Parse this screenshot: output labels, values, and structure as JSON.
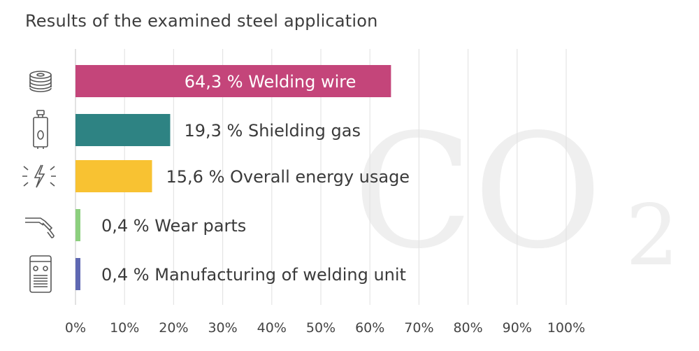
{
  "title": "Results of the examined steel application",
  "watermark": {
    "main": "CO",
    "sub": "2"
  },
  "chart_data": {
    "type": "bar",
    "orientation": "horizontal",
    "title": "Results of the examined steel application",
    "xlim": [
      0,
      100
    ],
    "x_ticks": [
      "0%",
      "10%",
      "20%",
      "30%",
      "40%",
      "50%",
      "60%",
      "70%",
      "80%",
      "90%",
      "100%"
    ],
    "grid": true,
    "categories": [
      "Welding wire",
      "Shielding gas",
      "Overall energy usage",
      "Wear parts",
      "Manufacturing of welding unit"
    ],
    "values": [
      64.3,
      19.3,
      15.6,
      0.4,
      0.4
    ],
    "labels": [
      "64,3 % Welding wire",
      "19,3 % Shielding gas",
      "15,6 % Overall energy usage",
      "0,4 % Wear parts",
      "0,4 % Manufacturing of welding unit"
    ],
    "colors": [
      "#c4457a",
      "#2e8383",
      "#f8c232",
      "#8ccf7e",
      "#5f68b2"
    ],
    "icons": [
      "wire-spool-icon",
      "gas-cylinder-icon",
      "energy-icon",
      "welding-torch-icon",
      "welding-unit-icon"
    ]
  }
}
